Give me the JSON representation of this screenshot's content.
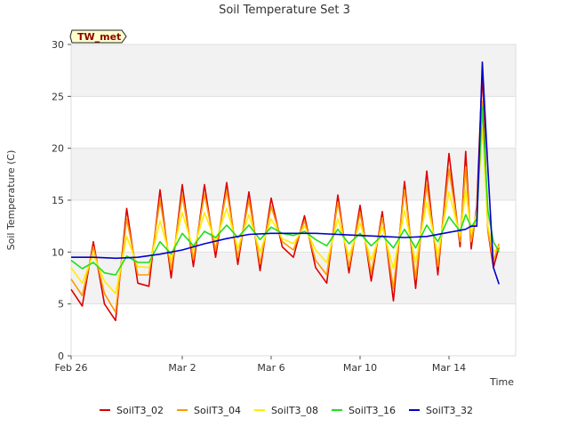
{
  "chart_data": {
    "type": "line",
    "title": "Soil Temperature Set 3",
    "xlabel": "Time",
    "ylabel": "Soil Temperature (C)",
    "ylim": [
      0,
      30
    ],
    "xlim": [
      "2024-02-26",
      "2024-03-17"
    ],
    "yticks": [
      0,
      5,
      10,
      15,
      20,
      25,
      30
    ],
    "xticks": [
      {
        "date": "2024-02-26",
        "label": "Feb 26"
      },
      {
        "date": "2024-03-02",
        "label": "Mar 2"
      },
      {
        "date": "2024-03-06",
        "label": "Mar 6"
      },
      {
        "date": "2024-03-10",
        "label": "Mar 10"
      },
      {
        "date": "2024-03-14",
        "label": "Mar 14"
      }
    ],
    "grid": "horizontal bands",
    "legend_position": "bottom",
    "annotation": "TW_met",
    "series": [
      {
        "name": "SoilT3_02",
        "color": "#dd0000",
        "x": [
          "2024-02-26T00:00",
          "2024-02-26T12:00",
          "2024-02-27T00:00",
          "2024-02-27T12:00",
          "2024-02-28T00:00",
          "2024-02-28T12:00",
          "2024-02-29T00:00",
          "2024-02-29T12:00",
          "2024-03-01T00:00",
          "2024-03-01T12:00",
          "2024-03-02T00:00",
          "2024-03-02T12:00",
          "2024-03-03T00:00",
          "2024-03-03T12:00",
          "2024-03-04T00:00",
          "2024-03-04T12:00",
          "2024-03-05T00:00",
          "2024-03-05T12:00",
          "2024-03-06T00:00",
          "2024-03-06T12:00",
          "2024-03-07T00:00",
          "2024-03-07T12:00",
          "2024-03-08T00:00",
          "2024-03-08T12:00",
          "2024-03-09T00:00",
          "2024-03-09T12:00",
          "2024-03-10T00:00",
          "2024-03-10T12:00",
          "2024-03-11T00:00",
          "2024-03-11T12:00",
          "2024-03-12T00:00",
          "2024-03-12T12:00",
          "2024-03-13T00:00",
          "2024-03-13T12:00",
          "2024-03-14T00:00",
          "2024-03-14T12:00",
          "2024-03-14T18:00",
          "2024-03-15T00:00",
          "2024-03-15T06:00",
          "2024-03-15T12:00",
          "2024-03-15T18:00",
          "2024-03-16T00:00",
          "2024-03-16T06:00"
        ],
        "values": [
          6.4,
          4.8,
          11.0,
          5.0,
          3.4,
          14.2,
          7.0,
          6.7,
          16.0,
          7.5,
          16.5,
          8.6,
          16.5,
          9.5,
          16.7,
          8.8,
          15.8,
          8.2,
          15.2,
          10.5,
          9.5,
          13.5,
          8.5,
          7.0,
          15.5,
          8.0,
          14.5,
          7.2,
          13.9,
          5.3,
          16.8,
          6.5,
          17.8,
          7.8,
          19.5,
          10.5,
          19.7,
          10.3,
          14.5,
          27.5,
          12.0,
          8.5,
          10.5
        ]
      },
      {
        "name": "SoilT3_04",
        "color": "#ff9900",
        "x": [
          "2024-02-26T00:00",
          "2024-02-26T12:00",
          "2024-02-27T00:00",
          "2024-02-27T12:00",
          "2024-02-28T00:00",
          "2024-02-28T12:00",
          "2024-02-29T00:00",
          "2024-02-29T12:00",
          "2024-03-01T00:00",
          "2024-03-01T12:00",
          "2024-03-02T00:00",
          "2024-03-02T12:00",
          "2024-03-03T00:00",
          "2024-03-03T12:00",
          "2024-03-04T00:00",
          "2024-03-04T12:00",
          "2024-03-05T00:00",
          "2024-03-05T12:00",
          "2024-03-06T00:00",
          "2024-03-06T12:00",
          "2024-03-07T00:00",
          "2024-03-07T12:00",
          "2024-03-08T00:00",
          "2024-03-08T12:00",
          "2024-03-09T00:00",
          "2024-03-09T12:00",
          "2024-03-10T00:00",
          "2024-03-10T12:00",
          "2024-03-11T00:00",
          "2024-03-11T12:00",
          "2024-03-12T00:00",
          "2024-03-12T12:00",
          "2024-03-13T00:00",
          "2024-03-13T12:00",
          "2024-03-14T00:00",
          "2024-03-14T12:00",
          "2024-03-14T18:00",
          "2024-03-15T00:00",
          "2024-03-15T06:00",
          "2024-03-15T12:00",
          "2024-03-15T18:00",
          "2024-03-16T00:00",
          "2024-03-16T06:00"
        ],
        "values": [
          7.4,
          5.8,
          10.5,
          6.0,
          4.2,
          13.2,
          7.8,
          7.8,
          15.0,
          8.3,
          15.5,
          9.3,
          15.6,
          10.2,
          15.9,
          9.5,
          15.0,
          8.9,
          14.4,
          11.0,
          10.2,
          13.0,
          9.2,
          7.8,
          14.8,
          8.6,
          13.8,
          8.0,
          13.3,
          6.5,
          16.0,
          7.5,
          16.5,
          8.6,
          18.0,
          11.0,
          18.2,
          11.0,
          14.0,
          24.5,
          12.0,
          9.2,
          10.8
        ]
      },
      {
        "name": "SoilT3_08",
        "color": "#ffee00",
        "x": [
          "2024-02-26T00:00",
          "2024-02-26T12:00",
          "2024-02-27T00:00",
          "2024-02-27T12:00",
          "2024-02-28T00:00",
          "2024-02-28T12:00",
          "2024-02-29T00:00",
          "2024-02-29T12:00",
          "2024-03-01T00:00",
          "2024-03-01T12:00",
          "2024-03-02T00:00",
          "2024-03-02T12:00",
          "2024-03-03T00:00",
          "2024-03-03T12:00",
          "2024-03-04T00:00",
          "2024-03-04T12:00",
          "2024-03-05T00:00",
          "2024-03-05T12:00",
          "2024-03-06T00:00",
          "2024-03-06T12:00",
          "2024-03-07T00:00",
          "2024-03-07T12:00",
          "2024-03-08T00:00",
          "2024-03-08T12:00",
          "2024-03-09T00:00",
          "2024-03-09T12:00",
          "2024-03-10T00:00",
          "2024-03-10T12:00",
          "2024-03-11T00:00",
          "2024-03-11T12:00",
          "2024-03-12T00:00",
          "2024-03-12T12:00",
          "2024-03-13T00:00",
          "2024-03-13T12:00",
          "2024-03-14T00:00",
          "2024-03-14T12:00",
          "2024-03-14T18:00",
          "2024-03-15T00:00",
          "2024-03-15T06:00",
          "2024-03-15T12:00",
          "2024-03-15T18:00",
          "2024-03-16T00:00",
          "2024-03-16T06:00"
        ],
        "values": [
          8.5,
          7.0,
          9.8,
          7.2,
          6.0,
          11.5,
          8.6,
          8.5,
          13.0,
          9.2,
          13.8,
          10.2,
          13.8,
          11.0,
          14.2,
          10.4,
          13.6,
          10.0,
          13.2,
          11.3,
          10.8,
          12.5,
          10.2,
          9.0,
          13.2,
          9.6,
          12.8,
          9.2,
          12.4,
          8.4,
          14.0,
          9.0,
          14.8,
          9.8,
          15.8,
          11.5,
          16.0,
          11.8,
          13.8,
          22.0,
          12.5,
          10.0,
          10.5
        ]
      },
      {
        "name": "SoilT3_16",
        "color": "#22dd22",
        "x": [
          "2024-02-26T00:00",
          "2024-02-26T12:00",
          "2024-02-27T00:00",
          "2024-02-27T12:00",
          "2024-02-28T00:00",
          "2024-02-28T12:00",
          "2024-02-29T00:00",
          "2024-02-29T12:00",
          "2024-03-01T00:00",
          "2024-03-01T12:00",
          "2024-03-02T00:00",
          "2024-03-02T12:00",
          "2024-03-03T00:00",
          "2024-03-03T12:00",
          "2024-03-04T00:00",
          "2024-03-04T12:00",
          "2024-03-05T00:00",
          "2024-03-05T12:00",
          "2024-03-06T00:00",
          "2024-03-06T12:00",
          "2024-03-07T00:00",
          "2024-03-07T12:00",
          "2024-03-08T00:00",
          "2024-03-08T12:00",
          "2024-03-09T00:00",
          "2024-03-09T12:00",
          "2024-03-10T00:00",
          "2024-03-10T12:00",
          "2024-03-11T00:00",
          "2024-03-11T12:00",
          "2024-03-12T00:00",
          "2024-03-12T12:00",
          "2024-03-13T00:00",
          "2024-03-13T12:00",
          "2024-03-14T00:00",
          "2024-03-14T12:00",
          "2024-03-14T18:00",
          "2024-03-15T00:00",
          "2024-03-15T06:00",
          "2024-03-15T12:00",
          "2024-03-15T18:00",
          "2024-03-16T00:00",
          "2024-03-16T06:00"
        ],
        "values": [
          9.2,
          8.4,
          9.0,
          8.0,
          7.8,
          9.6,
          9.0,
          9.0,
          11.0,
          9.8,
          11.8,
          10.6,
          12.0,
          11.4,
          12.6,
          11.4,
          12.6,
          11.2,
          12.4,
          11.8,
          11.6,
          12.0,
          11.2,
          10.6,
          12.2,
          10.8,
          11.8,
          10.6,
          11.6,
          10.4,
          12.2,
          10.4,
          12.6,
          11.0,
          13.4,
          12.0,
          13.6,
          12.4,
          13.2,
          24.0,
          14.0,
          11.0,
          10.0
        ]
      },
      {
        "name": "SoilT3_32",
        "color": "#0000cc",
        "x": [
          "2024-02-26T00:00",
          "2024-02-27T00:00",
          "2024-02-28T00:00",
          "2024-02-29T00:00",
          "2024-03-01T00:00",
          "2024-03-02T00:00",
          "2024-03-03T00:00",
          "2024-03-04T00:00",
          "2024-03-05T00:00",
          "2024-03-06T00:00",
          "2024-03-07T00:00",
          "2024-03-08T00:00",
          "2024-03-09T00:00",
          "2024-03-10T00:00",
          "2024-03-11T00:00",
          "2024-03-12T00:00",
          "2024-03-13T00:00",
          "2024-03-14T00:00",
          "2024-03-14T18:00",
          "2024-03-15T00:00",
          "2024-03-15T06:00",
          "2024-03-15T12:00",
          "2024-03-15T18:00",
          "2024-03-16T00:00",
          "2024-03-16T06:00"
        ],
        "values": [
          9.5,
          9.5,
          9.4,
          9.5,
          9.8,
          10.2,
          10.8,
          11.3,
          11.7,
          11.8,
          11.8,
          11.8,
          11.7,
          11.6,
          11.5,
          11.4,
          11.5,
          11.9,
          12.2,
          12.5,
          12.5,
          28.3,
          18.0,
          8.5,
          6.9
        ]
      }
    ]
  }
}
